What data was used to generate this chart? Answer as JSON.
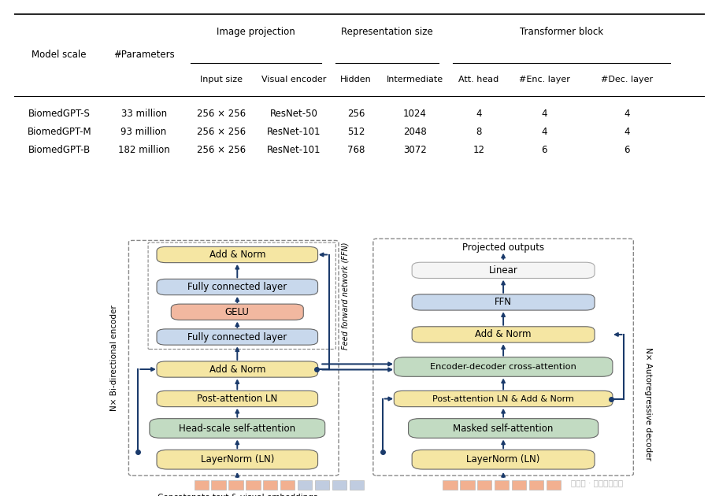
{
  "colors": {
    "yellow_box": "#F5E6A3",
    "blue_box": "#C8D8EC",
    "green_box": "#C2DBC2",
    "orange_box": "#F2B8A0",
    "white_box": "#F5F5F5",
    "dark_blue": "#1A3A6B"
  },
  "table": {
    "rows": [
      [
        "BiomedGPT-S",
        "33 million",
        "256 × 256",
        "ResNet-50",
        "256",
        "1024",
        "4",
        "4",
        "4"
      ],
      [
        "BiomedGPT-M",
        "93 million",
        "256 × 256",
        "ResNet-101",
        "512",
        "2048",
        "8",
        "4",
        "4"
      ],
      [
        "BiomedGPT-B",
        "182 million",
        "256 × 256",
        "ResNet-101",
        "768",
        "3072",
        "12",
        "6",
        "6"
      ]
    ]
  }
}
